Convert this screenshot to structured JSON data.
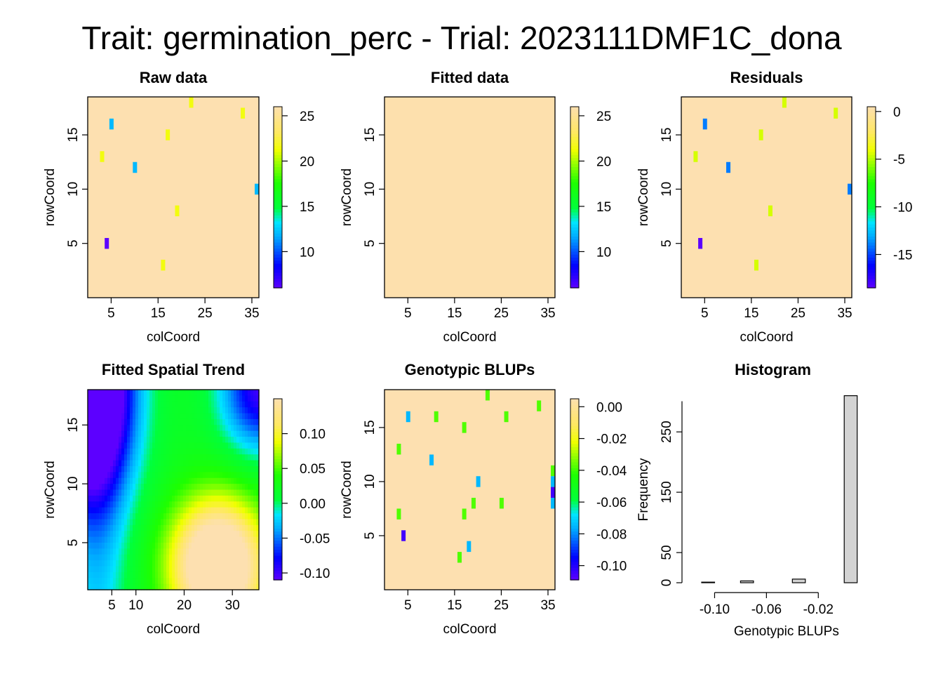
{
  "title": "Trait: germination_perc - Trial: 2023111DMF1C_dona",
  "colors": {
    "background_fill": "#fde0b0",
    "histogram_bar": "#d3d3d3",
    "axis": "#000000"
  },
  "chart_data": [
    {
      "id": "raw",
      "type": "heatmap",
      "title": "Raw data",
      "xlabel": "colCoord",
      "ylabel": "rowCoord",
      "xlim": [
        0,
        36.5
      ],
      "ylim": [
        0,
        18.5
      ],
      "xticks": [
        5,
        15,
        25,
        35
      ],
      "yticks": [
        5,
        10,
        15
      ],
      "background_value": 26,
      "colorbar": {
        "min": 6,
        "max": 26,
        "ticks": [
          10,
          15,
          20,
          25
        ]
      },
      "cells": [
        {
          "x": 22,
          "y": 18,
          "v": 21.5
        },
        {
          "x": 33,
          "y": 17,
          "v": 21.5
        },
        {
          "x": 5,
          "y": 16,
          "v": 12
        },
        {
          "x": 17,
          "y": 15,
          "v": 21.5
        },
        {
          "x": 3,
          "y": 13,
          "v": 21.5
        },
        {
          "x": 10,
          "y": 12,
          "v": 12
        },
        {
          "x": 36,
          "y": 10,
          "v": 12
        },
        {
          "x": 19,
          "y": 8,
          "v": 21.5
        },
        {
          "x": 4,
          "y": 5,
          "v": 6
        },
        {
          "x": 16,
          "y": 3,
          "v": 21.5
        }
      ]
    },
    {
      "id": "fitted",
      "type": "heatmap",
      "title": "Fitted data",
      "xlabel": "colCoord",
      "ylabel": "rowCoord",
      "xlim": [
        0,
        36.5
      ],
      "ylim": [
        0,
        18.5
      ],
      "xticks": [
        5,
        15,
        25,
        35
      ],
      "yticks": [
        5,
        10,
        15
      ],
      "background_value": 25.9,
      "colorbar": {
        "min": 6,
        "max": 26,
        "ticks": [
          10,
          15,
          20,
          25
        ]
      },
      "cells": []
    },
    {
      "id": "residuals",
      "type": "heatmap",
      "title": "Residuals",
      "xlabel": "colCoord",
      "ylabel": "rowCoord",
      "xlim": [
        0,
        36.5
      ],
      "ylim": [
        0,
        18.5
      ],
      "xticks": [
        5,
        15,
        25,
        35
      ],
      "yticks": [
        5,
        10,
        15
      ],
      "background_value": 0.5,
      "colorbar": {
        "min": -18.5,
        "max": 0.5,
        "ticks": [
          0,
          -5,
          -10,
          -15
        ]
      },
      "cells": [
        {
          "x": 22,
          "y": 18,
          "v": -4.5
        },
        {
          "x": 33,
          "y": 17,
          "v": -4.5
        },
        {
          "x": 5,
          "y": 16,
          "v": -14
        },
        {
          "x": 17,
          "y": 15,
          "v": -4.5
        },
        {
          "x": 3,
          "y": 13,
          "v": -4.5
        },
        {
          "x": 10,
          "y": 12,
          "v": -14
        },
        {
          "x": 36,
          "y": 10,
          "v": -14
        },
        {
          "x": 19,
          "y": 8,
          "v": -4.5
        },
        {
          "x": 4,
          "y": 5,
          "v": -18.5
        },
        {
          "x": 16,
          "y": 3,
          "v": -4.5
        }
      ]
    },
    {
      "id": "trend",
      "type": "heatmap",
      "title": "Fitted Spatial Trend",
      "xlabel": "colCoord",
      "ylabel": "rowCoord",
      "xlim": [
        0,
        35.5
      ],
      "ylim": [
        1,
        18
      ],
      "xticks": [
        5,
        10,
        20,
        30
      ],
      "yticks": [
        5,
        10,
        15
      ],
      "colorbar": {
        "min": -0.11,
        "max": 0.15,
        "ticks": [
          0.1,
          0.05,
          0.0,
          -0.05,
          -0.1
        ]
      },
      "cells": []
    },
    {
      "id": "blups",
      "type": "heatmap",
      "title": "Genotypic BLUPs",
      "xlabel": "colCoord",
      "ylabel": "rowCoord",
      "xlim": [
        0,
        36.5
      ],
      "ylim": [
        0,
        18.5
      ],
      "xticks": [
        5,
        15,
        25,
        35
      ],
      "yticks": [
        5,
        10,
        15
      ],
      "background_value": 0.005,
      "colorbar": {
        "min": -0.109,
        "max": 0.005,
        "ticks": [
          0.0,
          -0.02,
          -0.04,
          -0.06,
          -0.08,
          -0.1
        ]
      },
      "cells": [
        {
          "x": 22,
          "y": 18,
          "v": -0.038
        },
        {
          "x": 33,
          "y": 17,
          "v": -0.038
        },
        {
          "x": 5,
          "y": 16,
          "v": -0.075
        },
        {
          "x": 11,
          "y": 16,
          "v": -0.038
        },
        {
          "x": 26,
          "y": 16,
          "v": -0.038
        },
        {
          "x": 17,
          "y": 15,
          "v": -0.038
        },
        {
          "x": 3,
          "y": 13,
          "v": -0.038
        },
        {
          "x": 10,
          "y": 12,
          "v": -0.075
        },
        {
          "x": 36,
          "y": 11,
          "v": -0.038
        },
        {
          "x": 20,
          "y": 10,
          "v": -0.075
        },
        {
          "x": 36,
          "y": 10,
          "v": -0.075
        },
        {
          "x": 36,
          "y": 9,
          "v": -0.105
        },
        {
          "x": 19,
          "y": 8,
          "v": -0.038
        },
        {
          "x": 25,
          "y": 8,
          "v": -0.038
        },
        {
          "x": 36,
          "y": 8,
          "v": -0.075
        },
        {
          "x": 3,
          "y": 7,
          "v": -0.038
        },
        {
          "x": 17,
          "y": 7,
          "v": -0.038
        },
        {
          "x": 4,
          "y": 5,
          "v": -0.105
        },
        {
          "x": 18,
          "y": 4,
          "v": -0.075
        },
        {
          "x": 16,
          "y": 3,
          "v": -0.038
        }
      ]
    },
    {
      "id": "hist",
      "type": "bar",
      "title": "Histogram",
      "xlabel": "Genotypic BLUPs",
      "ylabel": "Frequency",
      "xlim": [
        -0.11,
        0.008
      ],
      "ylim": [
        0,
        320
      ],
      "xticks": [
        -0.1,
        -0.06,
        -0.02
      ],
      "yticks": [
        0,
        50,
        150,
        250
      ],
      "bins": [
        {
          "x0": -0.11,
          "x1": -0.1,
          "count": 1
        },
        {
          "x0": -0.1,
          "x1": -0.09,
          "count": 0
        },
        {
          "x0": -0.09,
          "x1": -0.08,
          "count": 0
        },
        {
          "x0": -0.08,
          "x1": -0.07,
          "count": 3
        },
        {
          "x0": -0.07,
          "x1": -0.06,
          "count": 0
        },
        {
          "x0": -0.06,
          "x1": -0.05,
          "count": 0
        },
        {
          "x0": -0.05,
          "x1": -0.04,
          "count": 0
        },
        {
          "x0": -0.04,
          "x1": -0.03,
          "count": 6
        },
        {
          "x0": -0.03,
          "x1": -0.02,
          "count": 0
        },
        {
          "x0": -0.02,
          "x1": -0.01,
          "count": 0
        },
        {
          "x0": -0.01,
          "x1": 0.0,
          "count": 0
        },
        {
          "x0": 0.0,
          "x1": 0.01,
          "count": 310
        }
      ]
    }
  ]
}
